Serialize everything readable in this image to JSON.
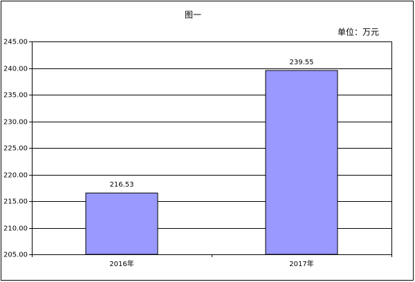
{
  "chart_data": {
    "type": "bar",
    "title": "图一",
    "annotation": "单位：万元",
    "categories": [
      "2016年",
      "2017年"
    ],
    "values": [
      216.53,
      239.55
    ],
    "color": "#9999ff",
    "ylim": [
      205,
      245
    ],
    "yticks": [
      {
        "value": 205,
        "label": "205.00"
      },
      {
        "value": 210,
        "label": "210.00"
      },
      {
        "value": 215,
        "label": "215.00"
      },
      {
        "value": 220,
        "label": "220.00"
      },
      {
        "value": 225,
        "label": "225.00"
      },
      {
        "value": 230,
        "label": "230.00"
      },
      {
        "value": 235,
        "label": "235.00"
      },
      {
        "value": 240,
        "label": "240.00"
      },
      {
        "value": 245,
        "label": "245.00"
      }
    ],
    "grid": true
  }
}
